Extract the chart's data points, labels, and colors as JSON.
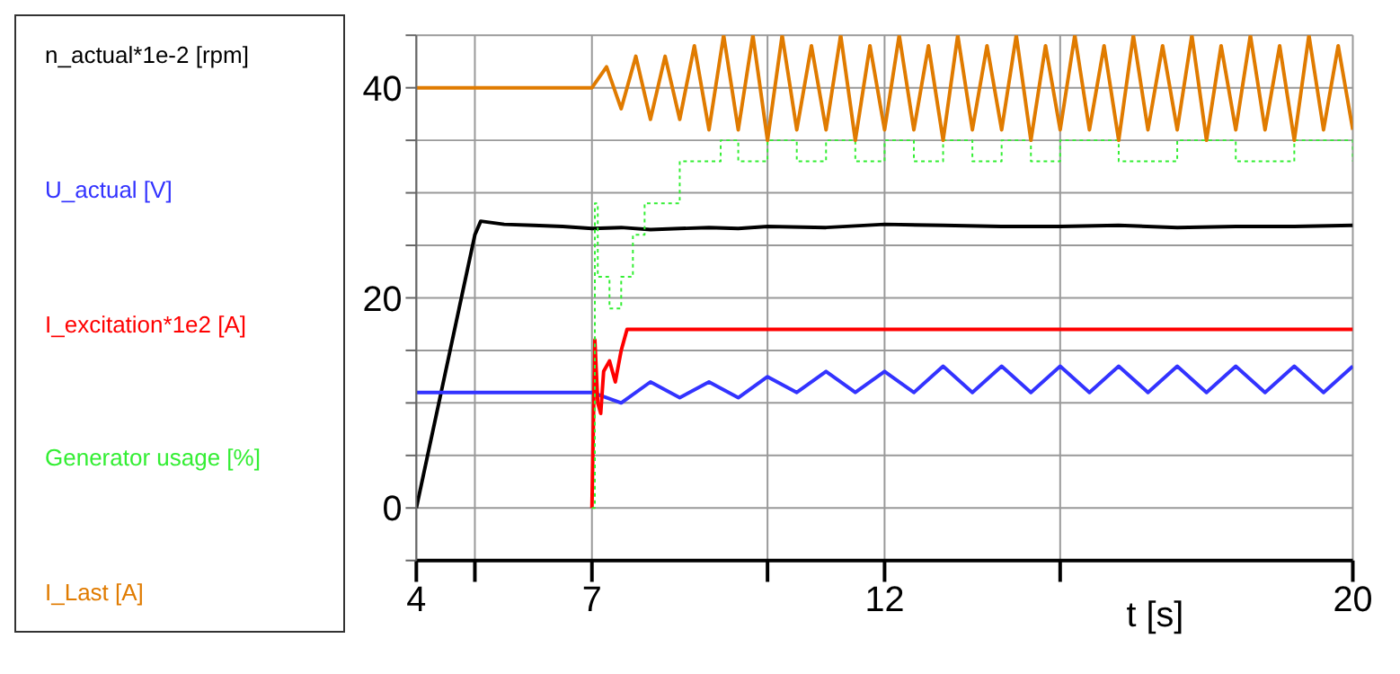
{
  "chart_data": {
    "type": "line",
    "xlabel": "t [s]",
    "xlim": [
      4,
      20
    ],
    "xticks": [
      4,
      {
        "value": 5,
        "label": null
      },
      7,
      {
        "value": 10,
        "label": null
      },
      12,
      {
        "value": 15,
        "label": null
      },
      20
    ],
    "ylim": [
      -5,
      45
    ],
    "yticks": [
      {
        "value": -5,
        "label": null
      },
      0,
      {
        "value": 5,
        "label": null
      },
      {
        "value": 10,
        "label": null
      },
      {
        "value": 15,
        "label": null
      },
      20,
      {
        "value": 25,
        "label": null
      },
      {
        "value": 30,
        "label": null
      },
      {
        "value": 35,
        "label": null
      },
      40,
      {
        "value": 45,
        "label": null
      }
    ],
    "grid": true,
    "legend": "left",
    "marker": "none",
    "line_style": "solid",
    "series": [
      {
        "name": "n_actual*1e-2 [rpm]",
        "color": "#000000",
        "x": [
          4,
          4.5,
          5,
          5.1,
          5.5,
          6,
          6.5,
          7,
          7.5,
          8,
          8.5,
          9,
          9.5,
          10,
          11,
          12,
          13,
          14,
          15,
          16,
          17,
          18,
          19,
          20
        ],
        "values": [
          0,
          13,
          26,
          27.3,
          27,
          26.9,
          26.8,
          26.6,
          26.7,
          26.5,
          26.6,
          26.7,
          26.6,
          26.8,
          26.7,
          27,
          26.9,
          26.8,
          26.8,
          26.9,
          26.7,
          26.8,
          26.8,
          26.9
        ]
      },
      {
        "name": "U_actual [V]",
        "color": "#3333ff",
        "x": [
          4,
          7,
          7.5,
          8,
          8.5,
          9,
          9.5,
          10,
          10.5,
          11,
          11.5,
          12,
          12.5,
          13,
          13.5,
          14,
          14.5,
          15,
          15.5,
          16,
          16.5,
          17,
          17.5,
          18,
          18.5,
          19,
          19.5,
          20
        ],
        "values": [
          11,
          11,
          10,
          12,
          10.5,
          12,
          10.5,
          12.5,
          11,
          13,
          11,
          13,
          11,
          13.5,
          11,
          13.5,
          11,
          13.5,
          11,
          13.5,
          11,
          13.5,
          11,
          13.5,
          11,
          13.5,
          11,
          13.5
        ]
      },
      {
        "name": "I_excitation*1e2 [A]",
        "color": "#ff0000",
        "x": [
          7,
          7.05,
          7.1,
          7.15,
          7.2,
          7.3,
          7.4,
          7.5,
          7.6,
          8,
          10,
          12,
          14,
          16,
          18,
          20
        ],
        "values": [
          0,
          16,
          10,
          9,
          13,
          14,
          12,
          15,
          17,
          17,
          17,
          17,
          17,
          17,
          17,
          17
        ]
      },
      {
        "name": "Generator usage [%]",
        "color": "#33ee33",
        "type": "step",
        "line_style": "dotted",
        "x": [
          7,
          7.05,
          7.1,
          7.3,
          7.5,
          7.7,
          7.9,
          8.2,
          8.5,
          8.8,
          9.2,
          9.5,
          10,
          10.5,
          11,
          11.5,
          12,
          12.5,
          13,
          13.5,
          14,
          14.5,
          15,
          16,
          17,
          18,
          19,
          20
        ],
        "values": [
          0,
          29,
          22,
          19,
          22,
          26,
          29,
          29,
          33,
          33,
          35,
          33,
          35,
          33,
          35,
          33,
          35,
          33,
          35,
          33,
          35,
          33,
          35,
          33,
          35,
          33,
          35,
          33
        ]
      },
      {
        "name": "I_Last [A]",
        "color": "#e07b00",
        "x": [
          4,
          7,
          7.25,
          7.5,
          7.75,
          8,
          8.25,
          8.5,
          8.75,
          9,
          9.25,
          9.5,
          9.75,
          10,
          10.25,
          10.5,
          10.75,
          11,
          11.25,
          11.5,
          11.75,
          12,
          12.25,
          12.5,
          12.75,
          13,
          13.25,
          13.5,
          13.75,
          14,
          14.25,
          14.5,
          14.75,
          15,
          15.25,
          15.5,
          15.75,
          16,
          16.25,
          16.5,
          16.75,
          17,
          17.25,
          17.5,
          17.75,
          18,
          18.25,
          18.5,
          18.75,
          19,
          19.25,
          19.5,
          19.75,
          20
        ],
        "values": [
          40,
          40,
          42,
          38,
          43,
          37,
          43,
          37,
          44,
          36,
          45,
          36,
          45,
          35,
          45,
          36,
          44,
          36,
          45,
          35,
          44,
          36,
          45,
          36,
          44,
          35,
          45,
          36,
          44,
          36,
          45,
          35,
          44,
          36,
          45,
          36,
          44,
          35,
          45,
          36,
          44,
          36,
          45,
          35,
          44,
          36,
          45,
          36,
          44,
          35,
          45,
          36,
          44,
          36
        ]
      }
    ]
  }
}
